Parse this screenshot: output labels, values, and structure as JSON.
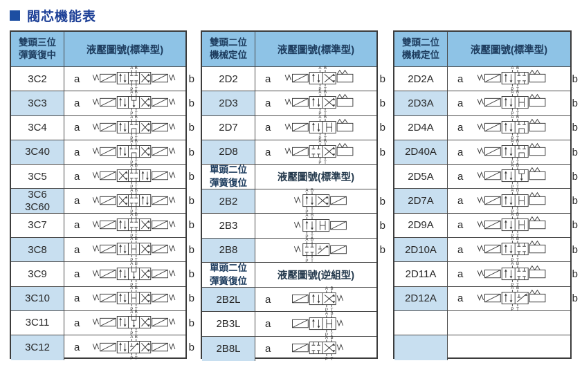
{
  "page": {
    "title": "閥芯機能表"
  },
  "colors": {
    "title_text": "#1c3f96",
    "title_square": "#1d4ea2",
    "header_bg": "#8ec3e6",
    "row_alt_bg": "#c8dff0",
    "header_text": "#1d3c5e",
    "border": "#4a4a4a",
    "diagram_stroke": "#3a3a3a"
  },
  "diagram_ports": {
    "top_left": "A",
    "top_right": "B",
    "bottom_left": "P",
    "bottom_right": "T"
  },
  "tables": [
    {
      "name": "double-head-three-position",
      "sections": [
        {
          "header": {
            "type_label": "雙頭三位\n彈簧復中",
            "diagram_label": "液壓圖號(標準型)"
          },
          "shade_odd": true,
          "rows": [
            {
              "model": "3C2",
              "a": "a",
              "b": "b",
              "kind": "3C",
              "boxes": [
                "ar",
                "cl",
                "x"
              ]
            },
            {
              "model": "3C3",
              "a": "a",
              "b": "b",
              "kind": "3C",
              "boxes": [
                "ar",
                "flo",
                "x"
              ]
            },
            {
              "model": "3C4",
              "a": "a",
              "b": "b",
              "kind": "3C",
              "boxes": [
                "ar",
                "tan",
                "x"
              ]
            },
            {
              "model": "3C40",
              "a": "a",
              "b": "b",
              "kind": "3C",
              "boxes": [
                "ar",
                "tan",
                "x"
              ]
            },
            {
              "model": "3C5",
              "a": "a",
              "b": "b",
              "kind": "3C",
              "boxes": [
                "x",
                "cl",
                "ar"
              ]
            },
            {
              "model": "3C6\n3C60",
              "a": "a",
              "b": "b",
              "kind": "3C",
              "boxes": [
                "x",
                "cl",
                "ar"
              ]
            },
            {
              "model": "3C7",
              "a": "a",
              "b": "b",
              "kind": "3C",
              "boxes": [
                "ar",
                "cl",
                "x"
              ]
            },
            {
              "model": "3C8",
              "a": "a",
              "b": "b",
              "kind": "3C",
              "boxes": [
                "ar",
                "h",
                "x"
              ]
            },
            {
              "model": "3C9",
              "a": "a",
              "b": "b",
              "kind": "3C",
              "boxes": [
                "ar",
                "flo",
                "x"
              ]
            },
            {
              "model": "3C10",
              "a": "a",
              "b": "b",
              "kind": "3C",
              "boxes": [
                "ar",
                "h",
                "x"
              ]
            },
            {
              "model": "3C11",
              "a": "a",
              "b": "b",
              "kind": "3C",
              "boxes": [
                "ar",
                "flo",
                "x"
              ]
            },
            {
              "model": "3C12",
              "a": "a",
              "b": "b",
              "kind": "3C",
              "boxes": [
                "ar",
                "xd",
                "x"
              ]
            }
          ]
        }
      ]
    },
    {
      "name": "two-position-and-single-head",
      "sections": [
        {
          "header": {
            "type_label": "雙頭二位\n機械定位",
            "diagram_label": "液壓圖號(標準型)"
          },
          "shade_odd": true,
          "rows": [
            {
              "model": "2D2",
              "a": "a",
              "b": "b",
              "kind": "2D",
              "boxes": [
                "ar",
                "x"
              ]
            },
            {
              "model": "2D3",
              "a": "a",
              "b": "b",
              "kind": "2D",
              "boxes": [
                "ar",
                "x"
              ]
            },
            {
              "model": "2D7",
              "a": "a",
              "b": "b",
              "kind": "2D",
              "boxes": [
                "ar",
                "h"
              ]
            },
            {
              "model": "2D8",
              "a": "a",
              "b": "b",
              "kind": "2D",
              "boxes": [
                "cl",
                "x"
              ]
            }
          ]
        },
        {
          "header": {
            "type_label": "單頭二位\n彈簧復位",
            "diagram_label": "液壓圖號(標準型)"
          },
          "shade_odd": false,
          "rows": [
            {
              "model": "2B2",
              "a": "",
              "b": "b",
              "kind": "2B",
              "boxes": [
                "ar",
                "x"
              ]
            },
            {
              "model": "2B3",
              "a": "",
              "b": "b",
              "kind": "2B",
              "boxes": [
                "ar",
                "h"
              ]
            },
            {
              "model": "2B8",
              "a": "",
              "b": "b",
              "kind": "2B",
              "boxes": [
                "cl",
                "xd"
              ]
            }
          ]
        },
        {
          "header": {
            "type_label": "單頭二位\n彈簧復位",
            "diagram_label": "液壓圖號(逆組型)"
          },
          "shade_odd": false,
          "rows": [
            {
              "model": "2B2L",
              "a": "a",
              "b": "",
              "kind": "2BL",
              "boxes": [
                "ar",
                "x"
              ]
            },
            {
              "model": "2B3L",
              "a": "a",
              "b": "",
              "kind": "2BL",
              "boxes": [
                "ar",
                "h"
              ]
            },
            {
              "model": "2B8L",
              "a": "a",
              "b": "",
              "kind": "2BL",
              "boxes": [
                "cl",
                "x"
              ]
            }
          ]
        }
      ]
    },
    {
      "name": "double-head-two-position-A",
      "sections": [
        {
          "header": {
            "type_label": "雙頭二位\n機械定位",
            "diagram_label": "液壓圖號(標準型)"
          },
          "shade_odd": true,
          "rows": [
            {
              "model": "2D2A",
              "a": "a",
              "b": "b",
              "kind": "2DA",
              "boxes": [
                "ar",
                "cl"
              ]
            },
            {
              "model": "2D3A",
              "a": "a",
              "b": "b",
              "kind": "2DA",
              "boxes": [
                "ar",
                "h"
              ]
            },
            {
              "model": "2D4A",
              "a": "a",
              "b": "b",
              "kind": "2DA",
              "boxes": [
                "ar",
                "tan"
              ]
            },
            {
              "model": "2D40A",
              "a": "a",
              "b": "b",
              "kind": "2DA",
              "boxes": [
                "ar",
                "tan"
              ]
            },
            {
              "model": "2D5A",
              "a": "a",
              "b": "b",
              "kind": "2DA",
              "boxes": [
                "ar",
                "flo"
              ]
            },
            {
              "model": "2D7A",
              "a": "a",
              "b": "b",
              "kind": "2DA",
              "boxes": [
                "ar",
                "h"
              ]
            },
            {
              "model": "2D9A",
              "a": "a",
              "b": "b",
              "kind": "2DA",
              "boxes": [
                "ar",
                "h"
              ]
            },
            {
              "model": "2D10A",
              "a": "a",
              "b": "b",
              "kind": "2DA",
              "boxes": [
                "ar",
                "cl"
              ]
            },
            {
              "model": "2D11A",
              "a": "a",
              "b": "b",
              "kind": "2DA",
              "boxes": [
                "ar",
                "cl"
              ]
            },
            {
              "model": "2D12A",
              "a": "a",
              "b": "b",
              "kind": "2DA",
              "boxes": [
                "ar",
                "xd"
              ]
            },
            {
              "model": "",
              "a": "",
              "b": "",
              "kind": "",
              "boxes": []
            },
            {
              "model": "",
              "a": "",
              "b": "",
              "kind": "",
              "boxes": []
            }
          ]
        }
      ]
    }
  ]
}
